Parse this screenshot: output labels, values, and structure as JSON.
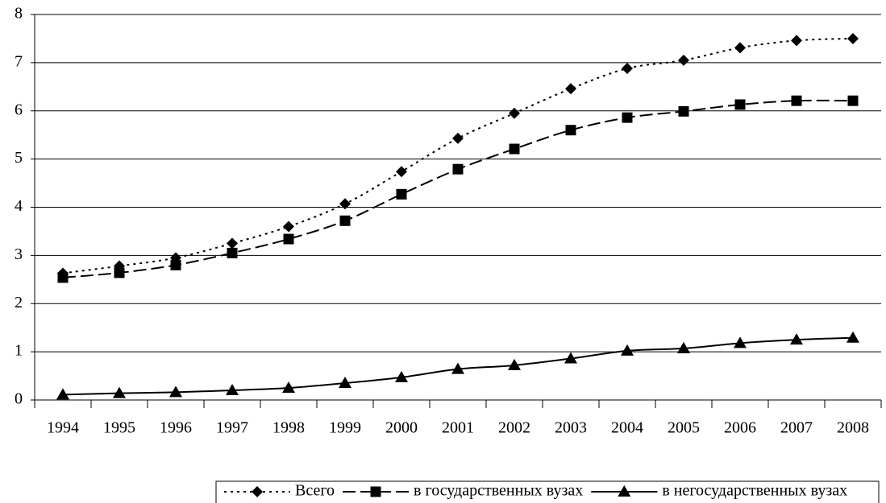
{
  "chart_data": {
    "type": "line",
    "categories": [
      "1994",
      "1995",
      "1996",
      "1997",
      "1998",
      "1999",
      "2000",
      "2001",
      "2002",
      "2003",
      "2004",
      "2005",
      "2006",
      "2007",
      "2008"
    ],
    "series": [
      {
        "name": "Всего",
        "color": "#000000",
        "marker": "diamond",
        "dash": "dotted",
        "values": [
          2.63,
          2.78,
          2.95,
          3.25,
          3.6,
          4.07,
          4.74,
          5.43,
          5.95,
          6.46,
          6.88,
          7.05,
          7.31,
          7.46,
          7.5
        ]
      },
      {
        "name": "в государственных вузах",
        "color": "#000000",
        "marker": "square",
        "dash": "dashed",
        "values": [
          2.54,
          2.64,
          2.8,
          3.05,
          3.34,
          3.72,
          4.27,
          4.79,
          5.21,
          5.6,
          5.86,
          5.99,
          6.13,
          6.21,
          6.21
        ]
      },
      {
        "name": "в негосударственных вузах",
        "color": "#000000",
        "marker": "triangle",
        "dash": "solid",
        "values": [
          0.11,
          0.14,
          0.16,
          0.2,
          0.25,
          0.35,
          0.47,
          0.64,
          0.72,
          0.86,
          1.02,
          1.07,
          1.18,
          1.25,
          1.29
        ]
      }
    ],
    "ylim": [
      0,
      8
    ],
    "yticks": [
      0,
      1,
      2,
      3,
      4,
      5,
      6,
      7,
      8
    ],
    "grid": true,
    "legend": "bottom"
  }
}
